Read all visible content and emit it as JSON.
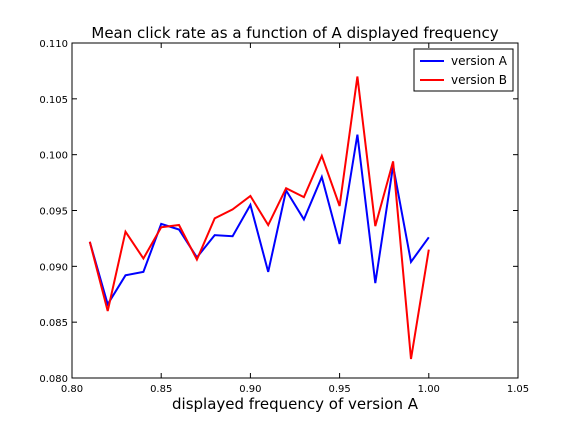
{
  "chart_data": {
    "type": "line",
    "title": "Mean click rate as a function of A displayed frequency",
    "xlabel": "displayed frequency of version A",
    "ylabel": "",
    "xlim": [
      0.8,
      1.05
    ],
    "ylim": [
      0.08,
      0.11
    ],
    "xticks": [
      "0.80",
      "0.85",
      "0.90",
      "0.95",
      "1.00",
      "1.05"
    ],
    "yticks": [
      "0.080",
      "0.085",
      "0.090",
      "0.095",
      "0.100",
      "0.105",
      "0.110"
    ],
    "grid": false,
    "legend_position": "top-right",
    "x": [
      0.81,
      0.82,
      0.83,
      0.84,
      0.85,
      0.86,
      0.87,
      0.88,
      0.89,
      0.9,
      0.91,
      0.92,
      0.93,
      0.94,
      0.95,
      0.96,
      0.97,
      0.98,
      0.99,
      1.0
    ],
    "series": [
      {
        "name": "version A",
        "color": "#0000ff",
        "values": [
          0.0922,
          0.0866,
          0.0892,
          0.0895,
          0.0938,
          0.0933,
          0.0908,
          0.0928,
          0.0927,
          0.0955,
          0.0895,
          0.0968,
          0.0942,
          0.098,
          0.092,
          0.1018,
          0.0885,
          0.099,
          0.0904,
          0.0926
        ]
      },
      {
        "name": "version B",
        "color": "#ff0000",
        "values": [
          0.0922,
          0.086,
          0.0931,
          0.0907,
          0.0935,
          0.0937,
          0.0906,
          0.0943,
          0.0951,
          0.0963,
          0.0937,
          0.097,
          0.0962,
          0.0999,
          0.0954,
          0.107,
          0.0936,
          0.0994,
          0.0817,
          0.0915
        ]
      }
    ]
  }
}
